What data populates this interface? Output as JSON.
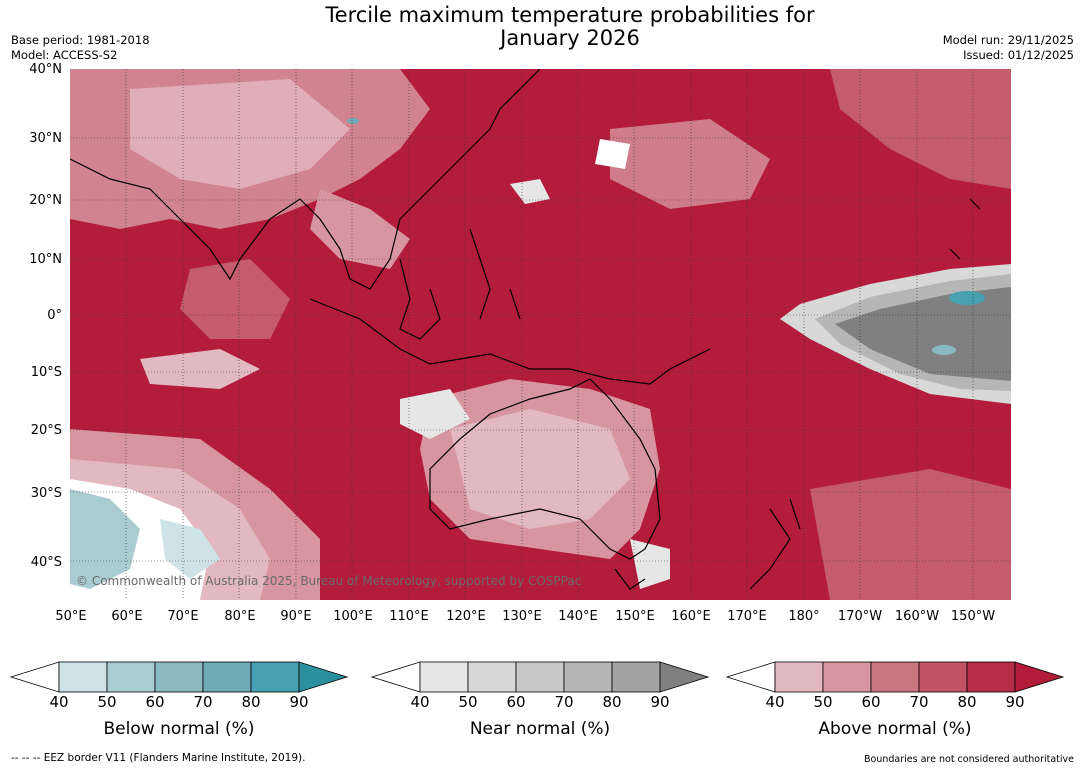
{
  "title": {
    "line1": "Tercile maximum temperature probabilities for",
    "line2": "January 2026"
  },
  "meta": {
    "base_period": "Base period: 1981-2018",
    "model": "Model: ACCESS-S2",
    "model_run": "Model run: 29/11/2025",
    "issued": "Issued: 01/12/2025"
  },
  "map": {
    "lat_labels": [
      "40°N",
      "30°N",
      "20°N",
      "10°N",
      "0°",
      "10°S",
      "20°S",
      "30°S",
      "40°S"
    ],
    "lon_labels": [
      "50°E",
      "60°E",
      "70°E",
      "80°E",
      "90°E",
      "100°E",
      "110°E",
      "120°E",
      "130°E",
      "140°E",
      "150°E",
      "160°E",
      "170°E",
      "180°",
      "170°W",
      "160°W",
      "150°W"
    ],
    "copyright": "© Commonwealth of Australia 2025, Bureau of Meteorology, supported by COSPPac",
    "background_color": "#b41c3c",
    "grid": "dotted"
  },
  "colorbars": [
    {
      "label": "Below normal (%)",
      "ticks": [
        "40",
        "50",
        "60",
        "70",
        "80",
        "90"
      ],
      "colors": [
        "#ffffff",
        "#cde3e8",
        "#a9ccd2",
        "#8cb8c1",
        "#6eabb7",
        "#47a1b1",
        "#2a8f9f"
      ]
    },
    {
      "label": "Near normal (%)",
      "ticks": [
        "40",
        "50",
        "60",
        "70",
        "80",
        "90"
      ],
      "colors": [
        "#ffffff",
        "#e6e6e6",
        "#d8d8d8",
        "#c8c8c8",
        "#b6b6b6",
        "#a2a2a2",
        "#808080"
      ]
    },
    {
      "label": "Above normal (%)",
      "ticks": [
        "40",
        "50",
        "60",
        "70",
        "80",
        "90"
      ],
      "colors": [
        "#ffffff",
        "#e2b9c0",
        "#d6959f",
        "#cb7782",
        "#c35466",
        "#b72d48",
        "#b21c38"
      ]
    }
  ],
  "footer": {
    "eez": "--  --  -- EEZ border V11 (Flanders Marine Institute, 2019).",
    "disclaimer": "Boundaries are not considered authoritative"
  }
}
